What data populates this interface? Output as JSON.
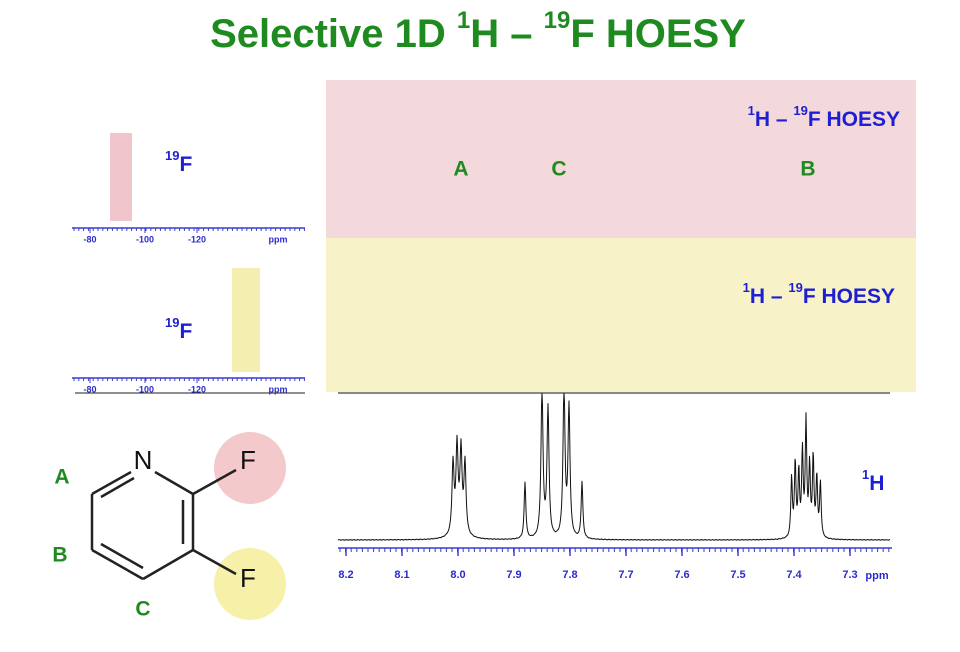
{
  "title": {
    "prefix": "Selective 1D ",
    "sup1": "1",
    "mid": "H – ",
    "sup2": "19",
    "suffix": "F HOESY"
  },
  "spectra": {
    "top": {
      "label": {
        "sup1": "1",
        "mid": "H – ",
        "sup2": "19",
        "suffix": "F HOESY"
      },
      "peaks": [
        "A",
        "C",
        "B"
      ]
    },
    "middle": {
      "label": {
        "sup1": "1",
        "mid": "H – ",
        "sup2": "19",
        "suffix": "F HOESY"
      }
    },
    "bottom": {
      "label": {
        "sup": "1",
        "suffix": "H"
      },
      "axis_ticks": [
        "8.2",
        "8.1",
        "8.0",
        "7.9",
        "7.8",
        "7.7",
        "7.6",
        "7.5",
        "7.4",
        "7.3"
      ],
      "axis_unit": "ppm"
    }
  },
  "fluorine_spectra": [
    {
      "label": {
        "sup": "19",
        "suffix": "F"
      },
      "axis_ticks": [
        "-80",
        "-100",
        "-120"
      ],
      "axis_unit": "ppm"
    },
    {
      "label": {
        "sup": "19",
        "suffix": "F"
      },
      "axis_ticks": [
        "-80",
        "-100",
        "-120"
      ],
      "axis_unit": "ppm"
    }
  ],
  "molecule": {
    "atoms": [
      "N",
      "F",
      "F"
    ],
    "positions": [
      "A",
      "B",
      "C"
    ]
  }
}
